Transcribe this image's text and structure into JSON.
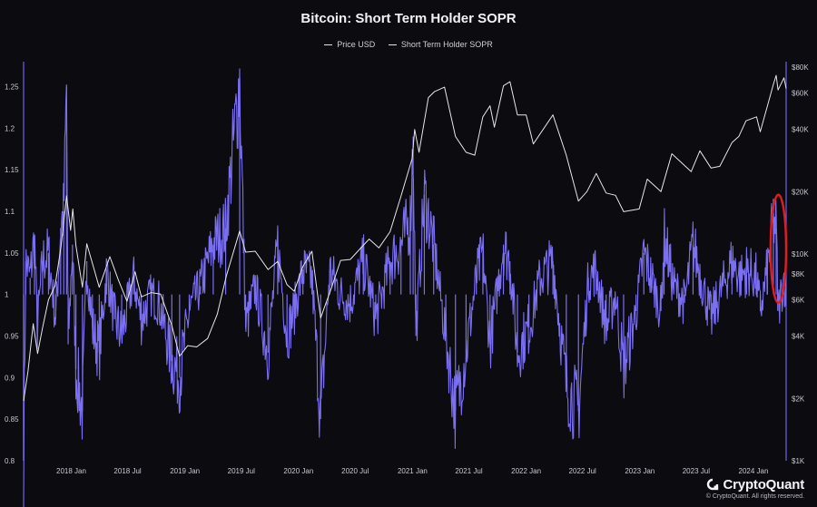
{
  "chart_data": {
    "type": "line",
    "title": "Bitcoin: Short Term Holder SOPR",
    "legend_placement": "top-center",
    "grid": false,
    "x_ticks": [
      "2018 Jan",
      "2018 Jul",
      "2019 Jan",
      "2019 Jul",
      "2020 Jan",
      "2020 Jul",
      "2021 Jan",
      "2021 Jul",
      "2022 Jan",
      "2022 Jul",
      "2023 Jan",
      "2023 Jul",
      "2024 Jan"
    ],
    "x_range": [
      "2017-08-01",
      "2024-04-15"
    ],
    "y_left": {
      "ticks": [
        "0.8",
        "0.85",
        "0.9",
        "0.95",
        "1",
        "1.05",
        "1.1",
        "1.15",
        "1.2",
        "1.25"
      ],
      "range": [
        0.8,
        1.28
      ]
    },
    "y_right": {
      "ticks": [
        "$1K",
        "$2K",
        "$4K",
        "$6K",
        "$8K",
        "$10K",
        "$20K",
        "$40K",
        "$60K",
        "$80K"
      ],
      "scale": "log",
      "range": [
        1000,
        85000
      ]
    },
    "series": [
      {
        "name": "Price USD",
        "axis": "right",
        "color": "#e6e6ea",
        "points": [
          [
            "2017-08-01",
            1950
          ],
          [
            "2017-08-15",
            2700
          ],
          [
            "2017-09-01",
            4600
          ],
          [
            "2017-09-15",
            3300
          ],
          [
            "2017-10-01",
            4400
          ],
          [
            "2017-10-20",
            6000
          ],
          [
            "2017-11-10",
            7000
          ],
          [
            "2017-11-29",
            10800
          ],
          [
            "2017-12-17",
            19100
          ],
          [
            "2017-12-30",
            13000
          ],
          [
            "2018-01-06",
            16500
          ],
          [
            "2018-01-16",
            11000
          ],
          [
            "2018-02-06",
            6900
          ],
          [
            "2018-02-20",
            11200
          ],
          [
            "2018-03-10",
            9000
          ],
          [
            "2018-04-01",
            6900
          ],
          [
            "2018-05-05",
            9700
          ],
          [
            "2018-06-01",
            7500
          ],
          [
            "2018-06-29",
            5900
          ],
          [
            "2018-07-25",
            8200
          ],
          [
            "2018-08-14",
            6200
          ],
          [
            "2018-09-15",
            6500
          ],
          [
            "2018-10-15",
            6400
          ],
          [
            "2018-11-20",
            4500
          ],
          [
            "2018-12-15",
            3200
          ],
          [
            "2019-01-10",
            3600
          ],
          [
            "2019-02-08",
            3550
          ],
          [
            "2019-03-15",
            3900
          ],
          [
            "2019-04-15",
            5100
          ],
          [
            "2019-05-15",
            7900
          ],
          [
            "2019-06-26",
            12900
          ],
          [
            "2019-07-15",
            10200
          ],
          [
            "2019-08-15",
            10300
          ],
          [
            "2019-09-25",
            8400
          ],
          [
            "2019-10-26",
            9200
          ],
          [
            "2019-11-25",
            7100
          ],
          [
            "2019-12-18",
            6600
          ],
          [
            "2020-01-15",
            8700
          ],
          [
            "2020-02-13",
            10300
          ],
          [
            "2020-03-12",
            4900
          ],
          [
            "2020-04-15",
            6800
          ],
          [
            "2020-05-15",
            9300
          ],
          [
            "2020-06-15",
            9400
          ],
          [
            "2020-07-27",
            11000
          ],
          [
            "2020-08-15",
            11800
          ],
          [
            "2020-09-15",
            10700
          ],
          [
            "2020-10-21",
            12800
          ],
          [
            "2020-11-25",
            19000
          ],
          [
            "2020-12-31",
            29000
          ],
          [
            "2021-01-08",
            40000
          ],
          [
            "2021-01-22",
            31000
          ],
          [
            "2021-02-21",
            57000
          ],
          [
            "2021-03-13",
            61000
          ],
          [
            "2021-04-14",
            64000
          ],
          [
            "2021-05-19",
            37000
          ],
          [
            "2021-06-22",
            31000
          ],
          [
            "2021-07-20",
            30000
          ],
          [
            "2021-08-15",
            46000
          ],
          [
            "2021-09-07",
            52000
          ],
          [
            "2021-09-21",
            41000
          ],
          [
            "2021-10-20",
            65000
          ],
          [
            "2021-11-10",
            68000
          ],
          [
            "2021-12-04",
            47000
          ],
          [
            "2022-01-01",
            47000
          ],
          [
            "2022-01-24",
            34000
          ],
          [
            "2022-03-28",
            47000
          ],
          [
            "2022-05-10",
            30000
          ],
          [
            "2022-06-18",
            18000
          ],
          [
            "2022-07-15",
            20000
          ],
          [
            "2022-08-14",
            24500
          ],
          [
            "2022-09-15",
            19700
          ],
          [
            "2022-10-15",
            19200
          ],
          [
            "2022-11-10",
            16000
          ],
          [
            "2022-12-30",
            16500
          ],
          [
            "2023-01-25",
            23000
          ],
          [
            "2023-03-10",
            20000
          ],
          [
            "2023-04-14",
            30500
          ],
          [
            "2023-06-15",
            25000
          ],
          [
            "2023-07-13",
            31500
          ],
          [
            "2023-08-18",
            26000
          ],
          [
            "2023-09-15",
            26500
          ],
          [
            "2023-10-24",
            34500
          ],
          [
            "2023-11-15",
            37000
          ],
          [
            "2023-12-08",
            44000
          ],
          [
            "2024-01-11",
            46000
          ],
          [
            "2024-01-23",
            39000
          ],
          [
            "2024-02-15",
            52000
          ],
          [
            "2024-03-05",
            66000
          ],
          [
            "2024-03-14",
            73000
          ],
          [
            "2024-03-20",
            62000
          ],
          [
            "2024-04-08",
            71000
          ],
          [
            "2024-04-15",
            63000
          ]
        ]
      },
      {
        "name": "Short Term Holder SOPR",
        "axis": "left",
        "color": "#7b6ff2",
        "points": [
          [
            "2017-08-01",
            0.8
          ],
          [
            "2017-08-08",
            1.04
          ],
          [
            "2017-08-22",
            1.02
          ],
          [
            "2017-09-05",
            1.07
          ],
          [
            "2017-09-14",
            0.96
          ],
          [
            "2017-10-01",
            1.04
          ],
          [
            "2017-10-20",
            1.05
          ],
          [
            "2017-11-12",
            0.97
          ],
          [
            "2017-11-28",
            1.08
          ],
          [
            "2017-12-08",
            1.1
          ],
          [
            "2017-12-17",
            1.25
          ],
          [
            "2017-12-22",
            0.94
          ],
          [
            "2018-01-05",
            1.06
          ],
          [
            "2018-01-16",
            0.91
          ],
          [
            "2018-02-06",
            0.86
          ],
          [
            "2018-02-20",
            1.04
          ],
          [
            "2018-03-10",
            0.96
          ],
          [
            "2018-04-01",
            0.93
          ],
          [
            "2018-04-25",
            1.03
          ],
          [
            "2018-05-20",
            0.97
          ],
          [
            "2018-06-12",
            0.95
          ],
          [
            "2018-07-20",
            1.02
          ],
          [
            "2018-08-14",
            0.97
          ],
          [
            "2018-09-15",
            1.0
          ],
          [
            "2018-10-10",
            0.99
          ],
          [
            "2018-11-20",
            0.92
          ],
          [
            "2018-12-15",
            0.9
          ],
          [
            "2019-01-15",
            0.98
          ],
          [
            "2019-02-20",
            1.01
          ],
          [
            "2019-04-02",
            1.06
          ],
          [
            "2019-05-12",
            1.08
          ],
          [
            "2019-06-26",
            1.26
          ],
          [
            "2019-07-15",
            0.96
          ],
          [
            "2019-08-15",
            1.01
          ],
          [
            "2019-09-25",
            0.93
          ],
          [
            "2019-10-26",
            1.06
          ],
          [
            "2019-11-25",
            0.95
          ],
          [
            "2019-12-18",
            0.98
          ],
          [
            "2020-01-15",
            1.03
          ],
          [
            "2020-02-13",
            1.02
          ],
          [
            "2020-03-12",
            0.85
          ],
          [
            "2020-04-10",
            1.03
          ],
          [
            "2020-05-15",
            1.0
          ],
          [
            "2020-06-15",
            0.99
          ],
          [
            "2020-07-27",
            1.04
          ],
          [
            "2020-08-15",
            1.01
          ],
          [
            "2020-09-05",
            0.97
          ],
          [
            "2020-10-21",
            1.04
          ],
          [
            "2020-11-25",
            1.06
          ],
          [
            "2020-12-25",
            1.09
          ],
          [
            "2021-01-03",
            1.19
          ],
          [
            "2021-01-12",
            0.95
          ],
          [
            "2021-02-08",
            1.12
          ],
          [
            "2021-03-10",
            1.06
          ],
          [
            "2021-04-18",
            0.95
          ],
          [
            "2021-05-19",
            0.86
          ],
          [
            "2021-06-22",
            0.93
          ],
          [
            "2021-07-25",
            1.02
          ],
          [
            "2021-08-15",
            1.05
          ],
          [
            "2021-09-07",
            0.94
          ],
          [
            "2021-10-20",
            1.06
          ],
          [
            "2021-11-10",
            1.04
          ],
          [
            "2021-12-04",
            0.93
          ],
          [
            "2022-01-10",
            0.96
          ],
          [
            "2022-02-15",
            1.02
          ],
          [
            "2022-03-28",
            1.04
          ],
          [
            "2022-05-10",
            0.89
          ],
          [
            "2022-06-18",
            0.86
          ],
          [
            "2022-07-20",
            1.02
          ],
          [
            "2022-08-14",
            1.03
          ],
          [
            "2022-09-15",
            0.96
          ],
          [
            "2022-10-15",
            1.0
          ],
          [
            "2022-11-10",
            0.91
          ],
          [
            "2022-12-20",
            0.98
          ],
          [
            "2023-01-14",
            1.05
          ],
          [
            "2023-02-15",
            1.01
          ],
          [
            "2023-03-10",
            0.98
          ],
          [
            "2023-03-20",
            1.07
          ],
          [
            "2023-04-20",
            1.01
          ],
          [
            "2023-05-25",
            0.99
          ],
          [
            "2023-06-21",
            1.06
          ],
          [
            "2023-08-18",
            0.97
          ],
          [
            "2023-09-15",
            1.0
          ],
          [
            "2023-10-24",
            1.04
          ],
          [
            "2023-11-20",
            1.02
          ],
          [
            "2023-12-10",
            1.03
          ],
          [
            "2024-01-10",
            1.02
          ],
          [
            "2024-01-23",
            0.98
          ],
          [
            "2024-02-15",
            1.03
          ],
          [
            "2024-03-05",
            1.09
          ],
          [
            "2024-03-14",
            1.08
          ],
          [
            "2024-03-20",
            0.98
          ],
          [
            "2024-04-08",
            1.02
          ],
          [
            "2024-04-15",
            1.0
          ]
        ]
      }
    ],
    "annotations": [
      {
        "type": "ellipse",
        "color": "#e01d22",
        "x_from": "2024-02-25",
        "x_to": "2024-04-15",
        "y_from": 0.99,
        "y_to": 1.12
      }
    ]
  },
  "branding": {
    "logo_text": "CryptoQuant",
    "copyright": "© CryptoQuant. All rights reserved."
  }
}
